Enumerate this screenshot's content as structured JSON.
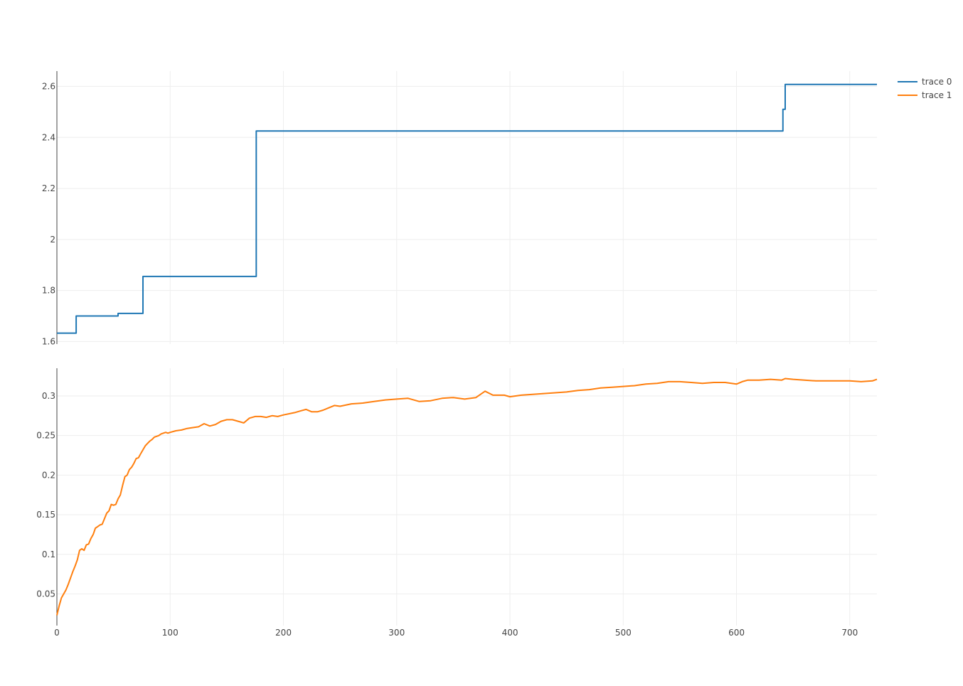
{
  "colors": {
    "trace0": "#1f77b4",
    "trace1": "#ff7f0e",
    "grid": "#eeeeee",
    "axis": "#444444"
  },
  "legend": {
    "placement": "top-right",
    "items": [
      "trace 0",
      "trace 1"
    ]
  },
  "chart_data": {
    "type": "line",
    "subplots": "two stacked y-axes sharing x-axis",
    "grid": true,
    "xlim": [
      0,
      724
    ],
    "x_ticks": [
      "0",
      "100",
      "200",
      "300",
      "400",
      "500",
      "600",
      "700"
    ],
    "x_tick_values": [
      0,
      100,
      200,
      300,
      400,
      500,
      600,
      700
    ],
    "upper_axis": {
      "ylim": [
        1.59,
        2.66
      ],
      "y_ticks": [
        "1.6",
        "1.8",
        "2",
        "2.2",
        "2.4",
        "2.6"
      ],
      "y_tick_values": [
        1.6,
        1.8,
        2.0,
        2.2,
        2.4,
        2.6
      ]
    },
    "lower_axis": {
      "ylim": [
        0.01,
        0.335
      ],
      "y_ticks": [
        "0.05",
        "0.1",
        "0.15",
        "0.2",
        "0.25",
        "0.3"
      ],
      "y_tick_values": [
        0.05,
        0.1,
        0.15,
        0.2,
        0.25,
        0.3
      ]
    },
    "series": [
      {
        "name": "trace 0",
        "axis": "upper",
        "step": true,
        "x": [
          0,
          16,
          17,
          53,
          54,
          75,
          76,
          175,
          176,
          640,
          641,
          642,
          643,
          724
        ],
        "y": [
          1.633,
          1.633,
          1.7,
          1.7,
          1.71,
          1.71,
          1.855,
          1.855,
          2.425,
          2.425,
          2.51,
          2.51,
          2.608,
          2.608
        ]
      },
      {
        "name": "trace 1",
        "axis": "lower",
        "step": false,
        "x": [
          0,
          2,
          4,
          6,
          8,
          10,
          12,
          14,
          16,
          18,
          20,
          22,
          24,
          26,
          28,
          30,
          32,
          34,
          36,
          38,
          40,
          42,
          44,
          46,
          48,
          50,
          52,
          54,
          56,
          58,
          60,
          62,
          64,
          66,
          68,
          70,
          72,
          74,
          76,
          78,
          80,
          82,
          84,
          86,
          88,
          90,
          92,
          94,
          96,
          98,
          100,
          105,
          110,
          115,
          120,
          125,
          130,
          135,
          140,
          145,
          150,
          155,
          160,
          165,
          170,
          175,
          180,
          185,
          190,
          195,
          200,
          210,
          215,
          220,
          225,
          230,
          235,
          240,
          245,
          250,
          260,
          270,
          280,
          290,
          300,
          310,
          320,
          330,
          340,
          350,
          360,
          370,
          378,
          385,
          395,
          400,
          410,
          420,
          430,
          440,
          450,
          460,
          470,
          480,
          490,
          500,
          510,
          520,
          530,
          540,
          550,
          560,
          570,
          580,
          590,
          600,
          605,
          610,
          620,
          630,
          640,
          643,
          650,
          660,
          670,
          680,
          690,
          700,
          710,
          720,
          724
        ],
        "y": [
          0.023,
          0.035,
          0.045,
          0.05,
          0.055,
          0.062,
          0.07,
          0.078,
          0.085,
          0.093,
          0.105,
          0.107,
          0.105,
          0.112,
          0.113,
          0.12,
          0.125,
          0.133,
          0.135,
          0.137,
          0.138,
          0.145,
          0.152,
          0.155,
          0.163,
          0.162,
          0.163,
          0.17,
          0.175,
          0.187,
          0.198,
          0.2,
          0.207,
          0.21,
          0.215,
          0.221,
          0.222,
          0.227,
          0.232,
          0.237,
          0.24,
          0.243,
          0.245,
          0.248,
          0.249,
          0.25,
          0.252,
          0.253,
          0.254,
          0.253,
          0.254,
          0.256,
          0.257,
          0.259,
          0.26,
          0.261,
          0.265,
          0.262,
          0.264,
          0.268,
          0.27,
          0.27,
          0.268,
          0.266,
          0.272,
          0.274,
          0.274,
          0.273,
          0.275,
          0.274,
          0.276,
          0.279,
          0.281,
          0.283,
          0.28,
          0.28,
          0.282,
          0.285,
          0.288,
          0.287,
          0.29,
          0.291,
          0.293,
          0.295,
          0.296,
          0.297,
          0.293,
          0.294,
          0.297,
          0.298,
          0.296,
          0.298,
          0.306,
          0.301,
          0.301,
          0.299,
          0.301,
          0.302,
          0.303,
          0.304,
          0.305,
          0.307,
          0.308,
          0.31,
          0.311,
          0.312,
          0.313,
          0.315,
          0.316,
          0.318,
          0.318,
          0.317,
          0.316,
          0.317,
          0.317,
          0.315,
          0.318,
          0.32,
          0.32,
          0.321,
          0.32,
          0.322,
          0.321,
          0.32,
          0.319,
          0.319,
          0.319,
          0.319,
          0.318,
          0.319,
          0.321
        ]
      }
    ]
  }
}
